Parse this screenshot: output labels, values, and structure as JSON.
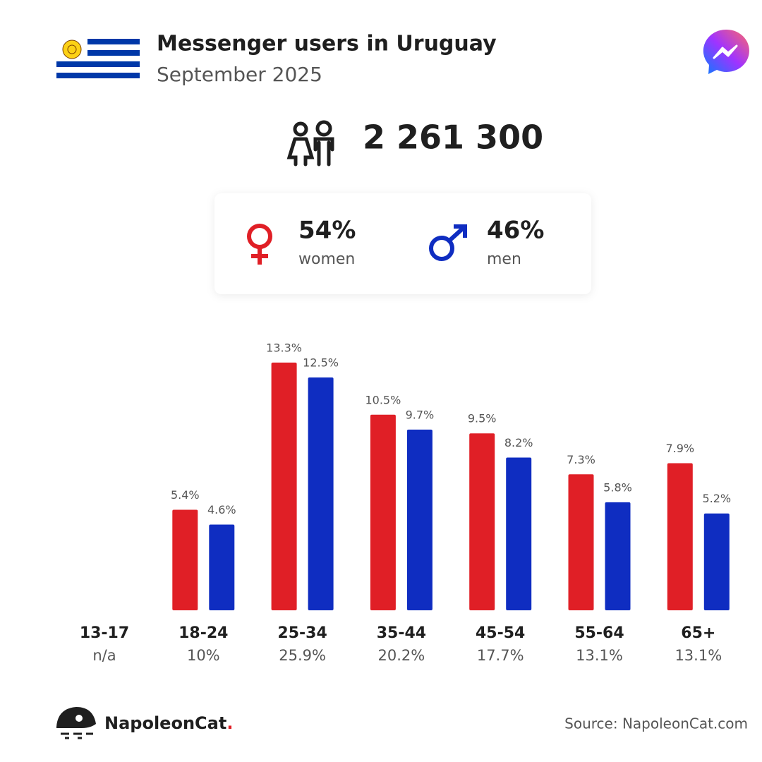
{
  "header": {
    "title": "Messenger users in Uruguay",
    "subtitle": "September 2025"
  },
  "total": "2 261 300",
  "chart_data": {
    "type": "bar",
    "categories": [
      "13-17",
      "18-24",
      "25-34",
      "35-44",
      "45-54",
      "55-64",
      "65+"
    ],
    "category_shares": [
      "n/a",
      "10%",
      "25.9%",
      "20.2%",
      "17.7%",
      "13.1%",
      "13.1%"
    ],
    "series": [
      {
        "name": "women",
        "share": "54%",
        "color": "#e01f26",
        "values": [
          null,
          5.4,
          13.3,
          10.5,
          9.5,
          7.3,
          7.9
        ],
        "value_labels": [
          null,
          "5.4%",
          "13.3%",
          "10.5%",
          "9.5%",
          "7.3%",
          "7.9%"
        ]
      },
      {
        "name": "men",
        "share": "46%",
        "color": "#0f2dc1",
        "values": [
          null,
          4.6,
          12.5,
          9.7,
          8.2,
          5.8,
          5.2
        ],
        "value_labels": [
          null,
          "4.6%",
          "12.5%",
          "9.7%",
          "8.2%",
          "5.8%",
          "5.2%"
        ]
      }
    ]
  },
  "footer": {
    "brand": "NapoleonCat",
    "brand_dot": ".",
    "source": "Source: NapoleonCat.com"
  }
}
